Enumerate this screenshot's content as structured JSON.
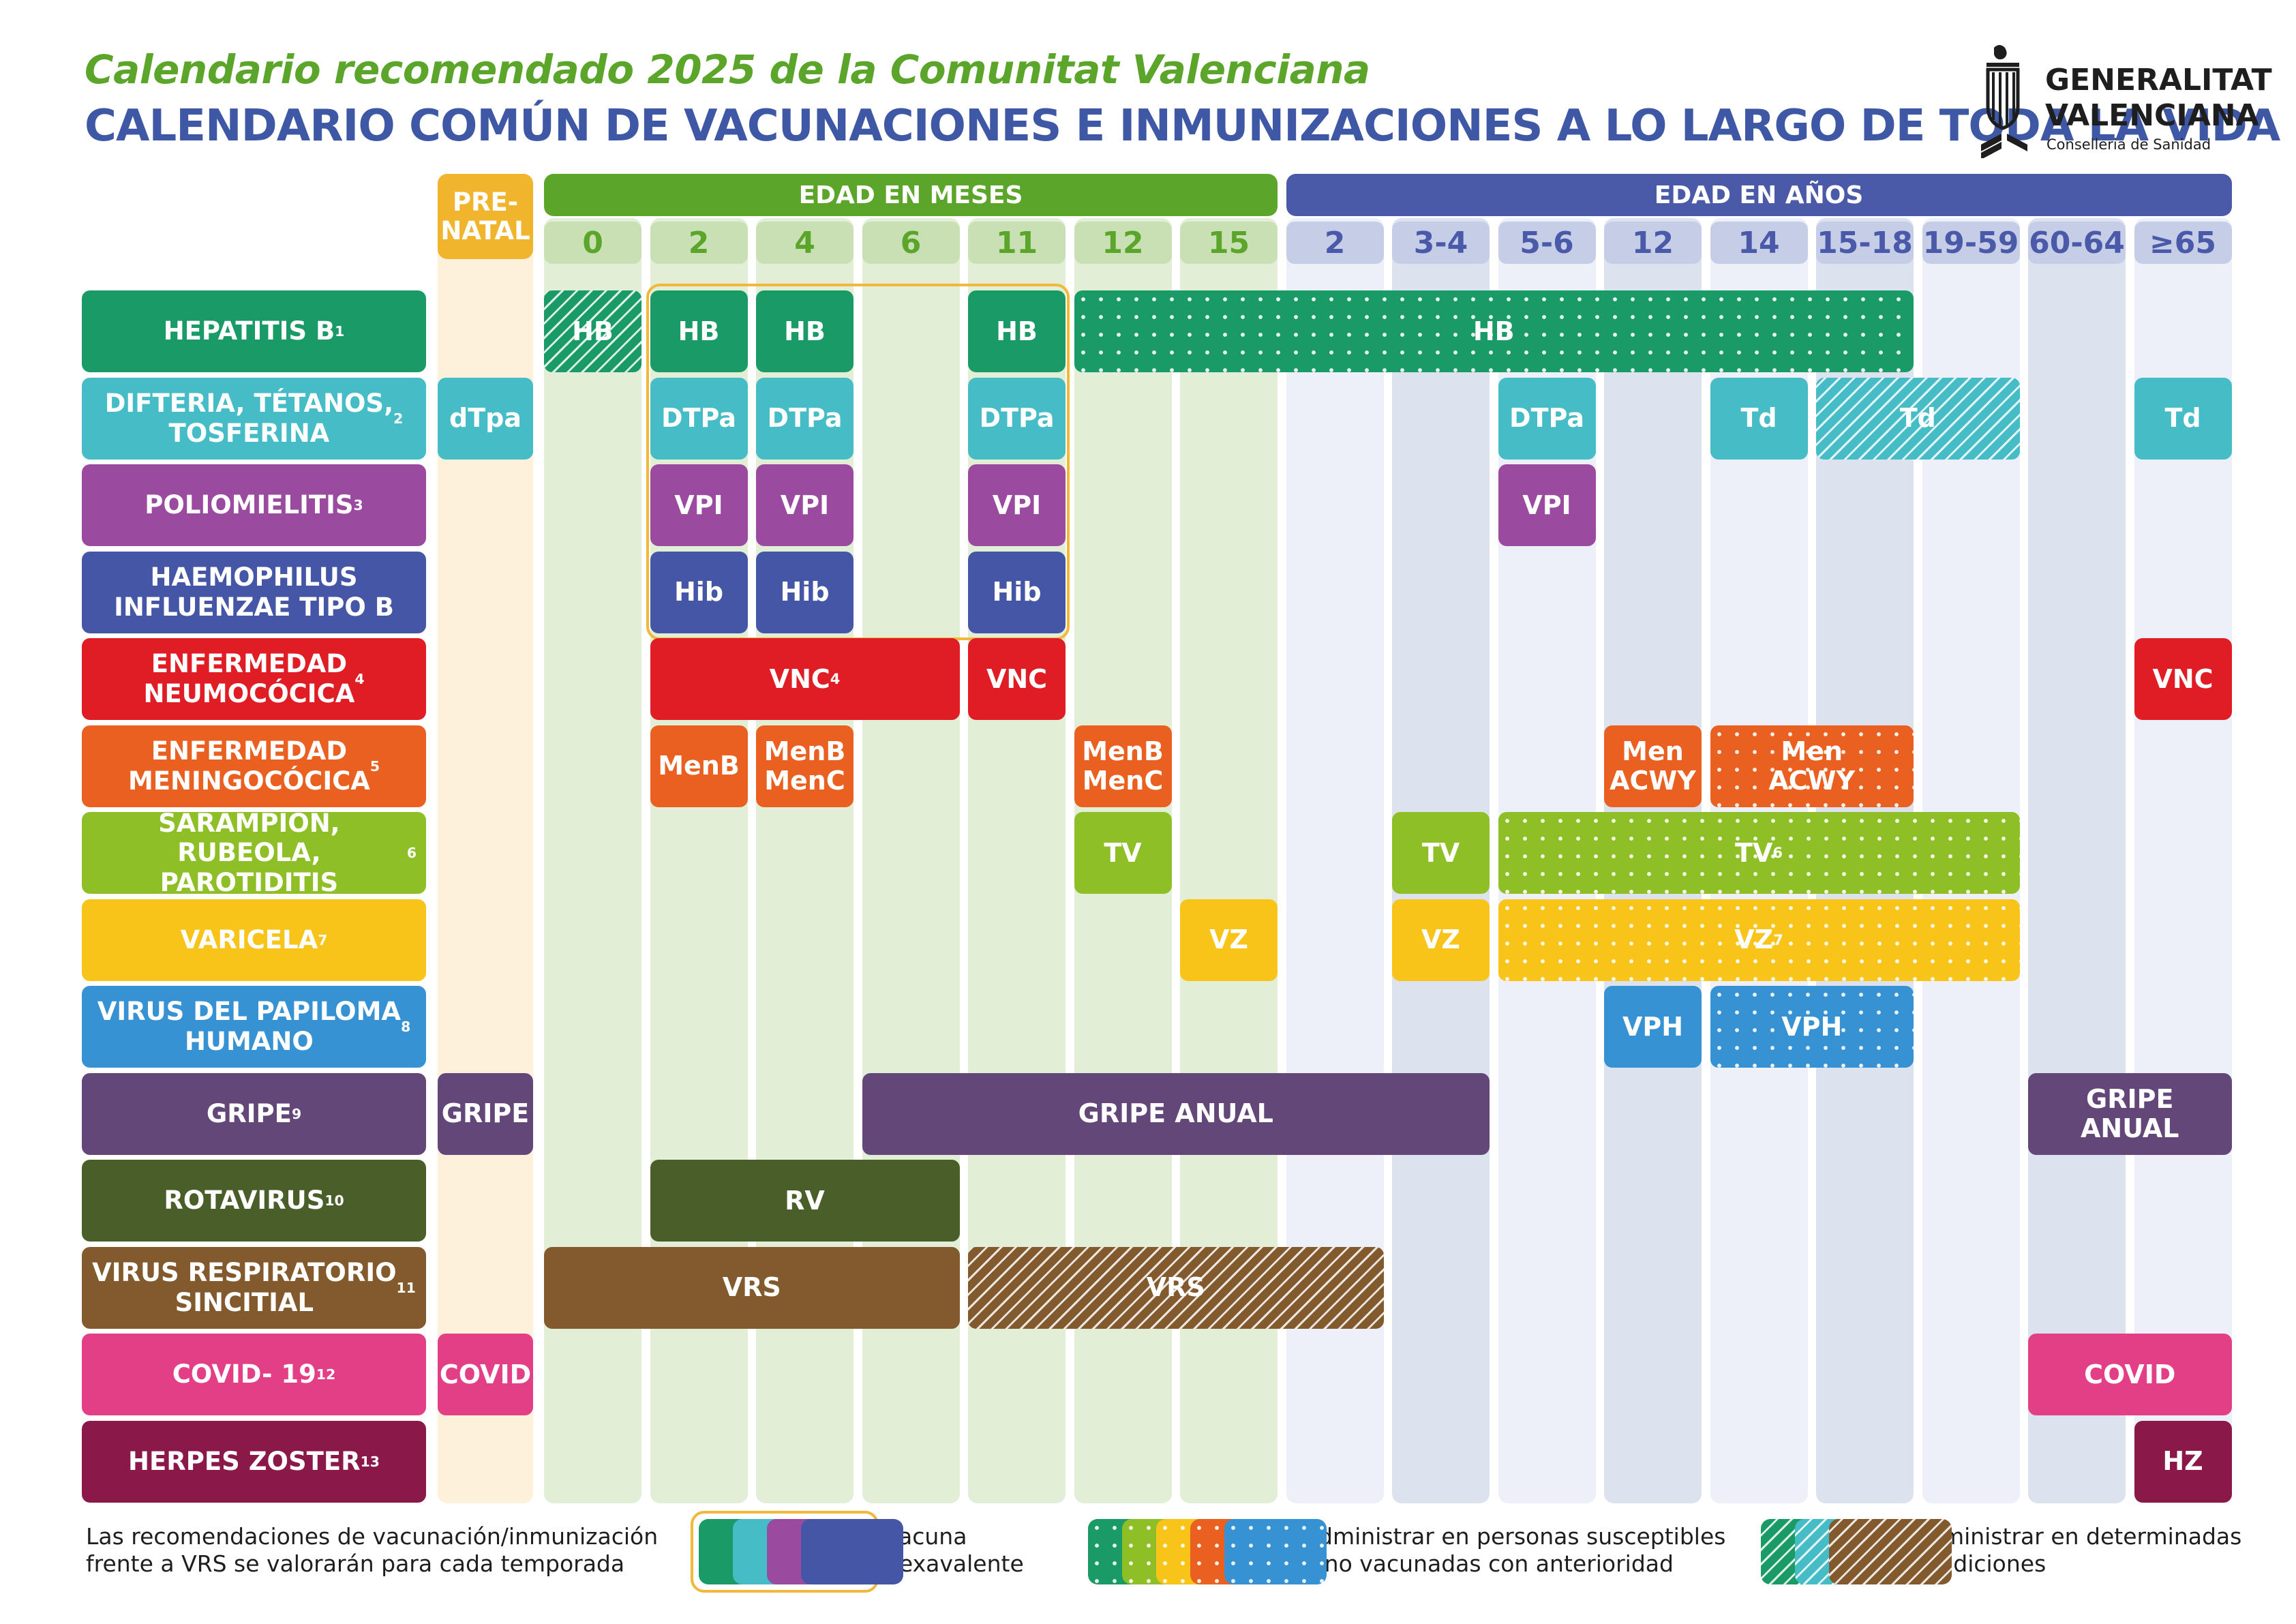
{
  "title": "Calendario recomendado 2025 de la Comunitat Valenciana",
  "subtitle": "CALENDARIO COMÚN DE VACUNACIONES E INMUNIZACIONES A LO LARGO DE TODA LA VIDA",
  "logo": {
    "line1": "GENERALITAT",
    "line2": "VALENCIANA",
    "line3": "Conselleria de Sanidad"
  },
  "headers": {
    "prenatal": "PRE-\nNATAL",
    "months": "EDAD EN MESES",
    "years": "EDAD EN AÑOS"
  },
  "colors": {
    "months": "#5aa52a",
    "years": "#4a5aa8",
    "prenatal": "#f0b52d",
    "monthsBg": "#e3eed7",
    "monthsHead": "#c9e0b5",
    "yearsBg1": "#edf0f8",
    "yearsBg2": "#dde2ef",
    "yearsHead": "#c6cde6",
    "prenatalBg": "#fdf1dc"
  },
  "columns": [
    {
      "label": "0",
      "group": "m"
    },
    {
      "label": "2",
      "group": "m"
    },
    {
      "label": "4",
      "group": "m"
    },
    {
      "label": "6",
      "group": "m"
    },
    {
      "label": "11",
      "group": "m"
    },
    {
      "label": "12",
      "group": "m"
    },
    {
      "label": "15",
      "group": "m"
    },
    {
      "label": "2",
      "group": "y"
    },
    {
      "label": "3-4",
      "group": "y"
    },
    {
      "label": "5-6",
      "group": "y"
    },
    {
      "label": "12",
      "group": "y"
    },
    {
      "label": "14",
      "group": "y"
    },
    {
      "label": "15-18",
      "group": "y"
    },
    {
      "label": "19-59",
      "group": "y"
    },
    {
      "label": "60-64",
      "group": "y"
    },
    {
      "label": "≥65",
      "group": "y"
    }
  ],
  "rows": [
    {
      "label": "HEPATITIS B",
      "sup": "1",
      "color": "#1a9a66"
    },
    {
      "label": "DIFTERIA, TÉTANOS,\nTOSFERINA",
      "sup": "2",
      "color": "#45bcc6"
    },
    {
      "label": "POLIOMIELITIS",
      "sup": "3",
      "color": "#9a4ba0"
    },
    {
      "label": "HAEMOPHILUS\nINFLUENZAE TIPO B",
      "sup": "",
      "color": "#4556a6"
    },
    {
      "label": "ENFERMEDAD\nNEUMOCÓCICA",
      "sup": "4",
      "color": "#e01d25"
    },
    {
      "label": "ENFERMEDAD\nMENINGOCÓCICA",
      "sup": "5",
      "color": "#ea6020"
    },
    {
      "label": "SARAMPIÓN, RUBEOLA,\nPAROTIDITIS",
      "sup": "6",
      "color": "#8fbf26"
    },
    {
      "label": "VARICELA",
      "sup": "7",
      "color": "#f8c41a"
    },
    {
      "label": "VIRUS DEL PAPILOMA\nHUMANO",
      "sup": "8",
      "color": "#3692d3"
    },
    {
      "label": "GRIPE",
      "sup": "9",
      "color": "#644779"
    },
    {
      "label": "ROTAVIRUS ",
      "sup": "10",
      "color": "#4a5e2a"
    },
    {
      "label": "VIRUS RESPIRATORIO\nSINCITIAL",
      "sup": "11",
      "color": "#825a2e"
    },
    {
      "label": "COVID- 19",
      "sup": "12",
      "color": "#e23f86"
    },
    {
      "label": "HERPES ZOSTER",
      "sup": "13",
      "color": "#8a1848"
    }
  ],
  "cells": [
    {
      "row": 0,
      "from": 0,
      "to": 0,
      "text": "HB",
      "style": "hatch"
    },
    {
      "row": 0,
      "from": 1,
      "to": 1,
      "text": "HB"
    },
    {
      "row": 0,
      "from": 2,
      "to": 2,
      "text": "HB"
    },
    {
      "row": 0,
      "from": 4,
      "to": 4,
      "text": "HB"
    },
    {
      "row": 0,
      "from": 5,
      "to": 12,
      "text": "HB",
      "style": "dots"
    },
    {
      "row": 1,
      "from": -1,
      "to": -1,
      "text": "dTpa"
    },
    {
      "row": 1,
      "from": 1,
      "to": 1,
      "text": "DTPa"
    },
    {
      "row": 1,
      "from": 2,
      "to": 2,
      "text": "DTPa"
    },
    {
      "row": 1,
      "from": 4,
      "to": 4,
      "text": "DTPa"
    },
    {
      "row": 1,
      "from": 9,
      "to": 9,
      "text": "DTPa"
    },
    {
      "row": 1,
      "from": 11,
      "to": 11,
      "text": "Td"
    },
    {
      "row": 1,
      "from": 12,
      "to": 13,
      "text": "Td",
      "style": "hatch"
    },
    {
      "row": 1,
      "from": 15,
      "to": 15,
      "text": "Td"
    },
    {
      "row": 2,
      "from": 1,
      "to": 1,
      "text": "VPI"
    },
    {
      "row": 2,
      "from": 2,
      "to": 2,
      "text": "VPI"
    },
    {
      "row": 2,
      "from": 4,
      "to": 4,
      "text": "VPI"
    },
    {
      "row": 2,
      "from": 9,
      "to": 9,
      "text": "VPI"
    },
    {
      "row": 3,
      "from": 1,
      "to": 1,
      "text": "Hib"
    },
    {
      "row": 3,
      "from": 2,
      "to": 2,
      "text": "Hib"
    },
    {
      "row": 3,
      "from": 4,
      "to": 4,
      "text": "Hib"
    },
    {
      "row": 4,
      "from": 1,
      "to": 3,
      "text": "VNC",
      "sup": "4"
    },
    {
      "row": 4,
      "from": 4,
      "to": 4,
      "text": "VNC"
    },
    {
      "row": 4,
      "from": 15,
      "to": 15,
      "text": "VNC"
    },
    {
      "row": 5,
      "from": 1,
      "to": 1,
      "text": "MenB"
    },
    {
      "row": 5,
      "from": 2,
      "to": 2,
      "text": "MenB\nMenC"
    },
    {
      "row": 5,
      "from": 5,
      "to": 5,
      "text": "MenB\nMenC"
    },
    {
      "row": 5,
      "from": 10,
      "to": 10,
      "text": "Men\nACWY"
    },
    {
      "row": 5,
      "from": 11,
      "to": 12,
      "text": "Men\nACWY",
      "style": "dots"
    },
    {
      "row": 6,
      "from": 5,
      "to": 5,
      "text": "TV"
    },
    {
      "row": 6,
      "from": 8,
      "to": 8,
      "text": "TV"
    },
    {
      "row": 6,
      "from": 9,
      "to": 13,
      "text": "TV",
      "sup": "6",
      "style": "dots"
    },
    {
      "row": 7,
      "from": 6,
      "to": 6,
      "text": "VZ"
    },
    {
      "row": 7,
      "from": 8,
      "to": 8,
      "text": "VZ"
    },
    {
      "row": 7,
      "from": 9,
      "to": 13,
      "text": "VZ",
      "sup": "7",
      "style": "dots"
    },
    {
      "row": 8,
      "from": 10,
      "to": 10,
      "text": "VPH"
    },
    {
      "row": 8,
      "from": 11,
      "to": 12,
      "text": "VPH",
      "style": "dots"
    },
    {
      "row": 9,
      "from": -1,
      "to": -1,
      "text": "GRIPE"
    },
    {
      "row": 9,
      "from": 3,
      "to": 8,
      "text": "GRIPE ANUAL"
    },
    {
      "row": 9,
      "from": 14,
      "to": 15,
      "text": "GRIPE ANUAL"
    },
    {
      "row": 10,
      "from": 1,
      "to": 3,
      "text": "RV"
    },
    {
      "row": 11,
      "from": 0,
      "to": 3,
      "text": "VRS"
    },
    {
      "row": 11,
      "from": 4,
      "to": 7,
      "text": "VRS",
      "style": "hatch"
    },
    {
      "row": 12,
      "from": -1,
      "to": -1,
      "text": "COVID"
    },
    {
      "row": 12,
      "from": 14,
      "to": 15,
      "text": "COVID"
    },
    {
      "row": 13,
      "from": 15,
      "to": 15,
      "text": "HZ"
    }
  ],
  "legend": {
    "note": "Las recomendaciones de vacunación/inmunización\nfrente a VRS se valorarán para cada temporada",
    "hexa": "Vacuna\nhexavalente",
    "susceptible": "Administrar en personas susceptibles\no no vacunadas con anterioridad",
    "conditions": "Administrar en determinadas\ncondiciones"
  }
}
